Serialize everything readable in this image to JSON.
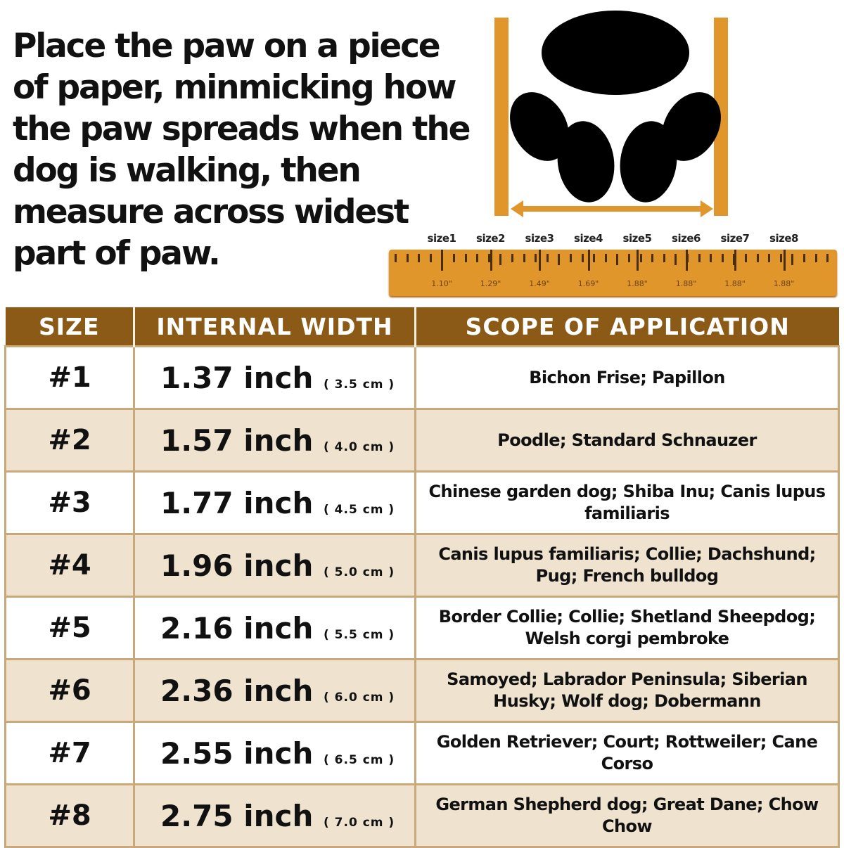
{
  "instruction": "Place the paw on a piece of paper, minmicking how the paw spreads when the dog is walking, then measure across widest part of paw.",
  "ruler": {
    "labels": [
      "size1",
      "size2",
      "size3",
      "size4",
      "size5",
      "size6",
      "size7",
      "size8"
    ],
    "values": [
      "1.10\"",
      "1.29\"",
      "1.49\"",
      "1.69\"",
      "1.88\"",
      "1.88\"",
      "1.88\"",
      "1.88\""
    ]
  },
  "colors": {
    "header": "#8b5a17",
    "ruler": "#e0962a",
    "row_alt": "#efe2cf",
    "paw": "#000000"
  },
  "table": {
    "headers": [
      "SIZE",
      "INTERNAL WIDTH",
      "SCOPE OF APPLICATION"
    ],
    "rows": [
      {
        "size": "#1",
        "width": "1.37 inch",
        "cm": "( 3.5 cm )",
        "scope": "Bichon Frise; Papillon"
      },
      {
        "size": "#2",
        "width": "1.57 inch",
        "cm": "( 4.0 cm )",
        "scope": "Poodle; Standard Schnauzer"
      },
      {
        "size": "#3",
        "width": "1.77 inch",
        "cm": "( 4.5 cm )",
        "scope": "Chinese garden dog; Shiba Inu; Canis lupus familiaris"
      },
      {
        "size": "#4",
        "width": "1.96 inch",
        "cm": "( 5.0 cm )",
        "scope": "Canis lupus familiaris; Collie; Dachshund; Pug; French bulldog"
      },
      {
        "size": "#5",
        "width": "2.16 inch",
        "cm": "( 5.5 cm )",
        "scope": "Border Collie; Collie; Shetland Sheepdog; Welsh corgi pembroke"
      },
      {
        "size": "#6",
        "width": "2.36 inch",
        "cm": "( 6.0 cm )",
        "scope": "Samoyed; Labrador Peninsula; Siberian Husky; Wolf dog; Dobermann"
      },
      {
        "size": "#7",
        "width": "2.55 inch",
        "cm": "( 6.5 cm )",
        "scope": "Golden Retriever; Court; Rottweiler; Cane Corso"
      },
      {
        "size": "#8",
        "width": "2.75 inch",
        "cm": "( 7.0 cm )",
        "scope": "German Shepherd dog; Great Dane; Chow Chow"
      }
    ]
  }
}
